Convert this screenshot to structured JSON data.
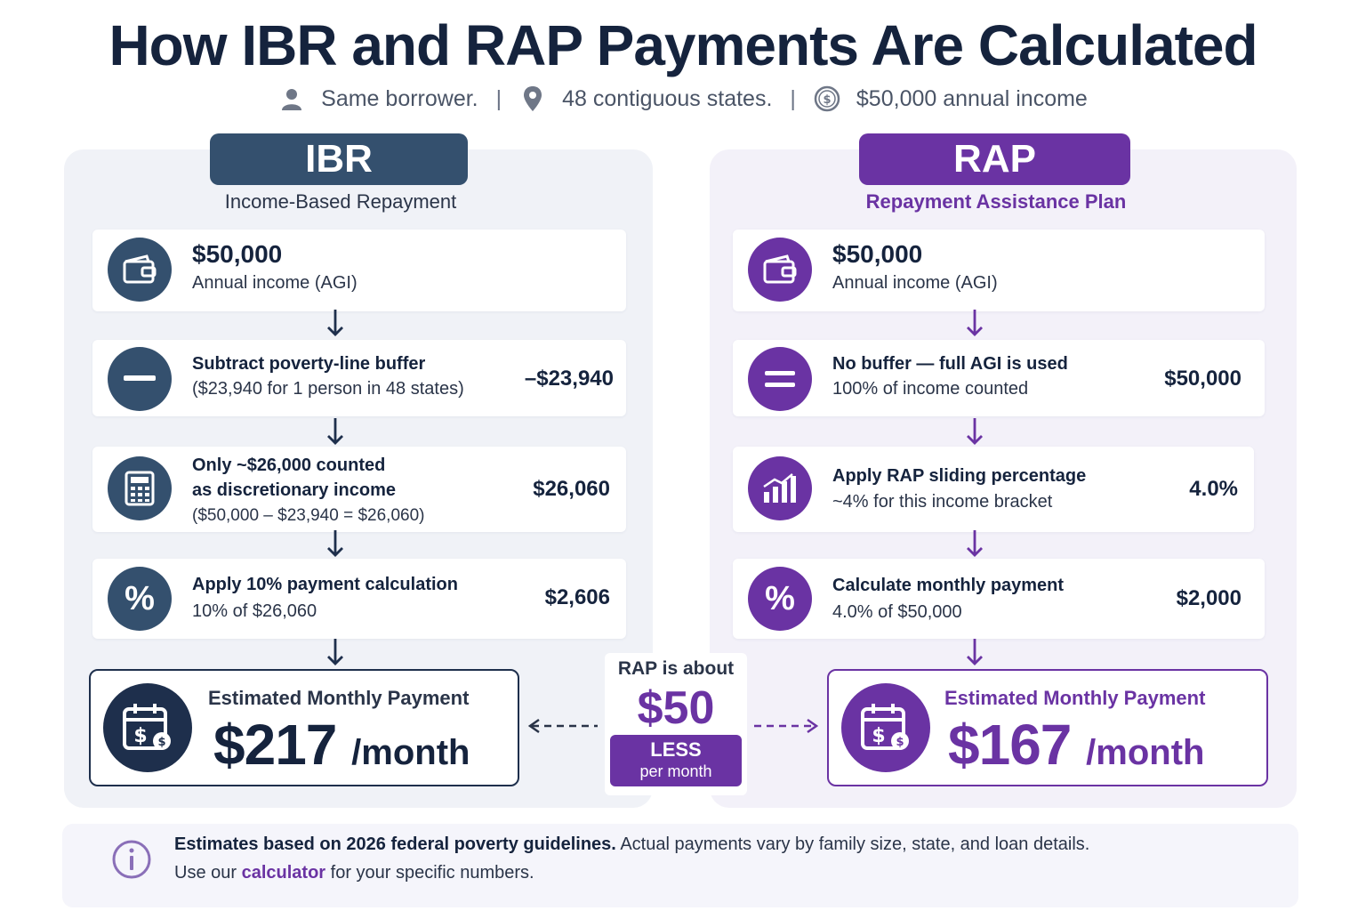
{
  "title": "How IBR and RAP Payments Are Calculated",
  "subtitle": {
    "item1": "Same borrower.",
    "item2": "48 contiguous states.",
    "item3": "$50,000 annual income",
    "separator": "|"
  },
  "ibr": {
    "label": "IBR",
    "name": "Income-Based Repayment",
    "step1": {
      "amount": "$50,000",
      "desc": "Annual income (AGI)"
    },
    "step2": {
      "title": "Subtract poverty-line buffer",
      "desc": "($23,940 for 1 person in 48 states)",
      "value": "–$23,940"
    },
    "step3": {
      "title_line1": "Only ~$26,000 counted",
      "title_line2": "as discretionary income",
      "desc": "($50,000 – $23,940 = $26,060)",
      "value": "$26,060"
    },
    "step4": {
      "title": "Apply 10% payment calculation",
      "desc": "10% of $26,060",
      "value": "$2,606"
    },
    "result": {
      "label": "Estimated Monthly Payment",
      "amount": "$217",
      "unit": "/month"
    }
  },
  "rap": {
    "label": "RAP",
    "name": "Repayment Assistance Plan",
    "step1": {
      "amount": "$50,000",
      "desc": "Annual income (AGI)"
    },
    "step2": {
      "title": "No buffer — full AGI is used",
      "desc": "100% of income counted",
      "value": "$50,000"
    },
    "step3": {
      "title": "Apply RAP sliding percentage",
      "desc": "~4% for this income bracket",
      "value": "4.0%"
    },
    "step4": {
      "title": "Calculate monthly payment",
      "desc": "4.0% of $50,000",
      "value": "$2,000"
    },
    "result": {
      "label": "Estimated Monthly Payment",
      "amount": "$167",
      "unit": "/month"
    }
  },
  "comparison": {
    "line1": "RAP is about",
    "amount": "$50",
    "badge_line1": "LESS",
    "badge_line2": "per month"
  },
  "percent_symbol": "%",
  "footnote": {
    "bold": "Estimates based on 2026 federal poverty guidelines.",
    "rest": " Actual payments vary by family size, state, and loan details.",
    "line2_pre": "Use our ",
    "link": "calculator",
    "line2_post": " for your specific numbers."
  },
  "colors": {
    "ibr": "#34506e",
    "rap": "#6a33a3",
    "dark": "#15233d"
  }
}
